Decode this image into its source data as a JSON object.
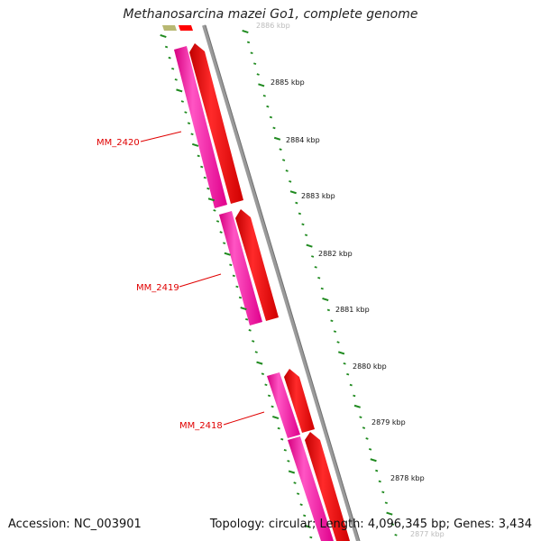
{
  "title": "Methanosarcina mazei Go1, complete genome",
  "footer": {
    "accession_label": "Accession:",
    "accession": "NC_003901",
    "topology_label": "Topology:",
    "topology": "circular",
    "length_label": "Length:",
    "length": "4,096,345 bp",
    "genes_label": "Genes:",
    "genes": "3,434"
  },
  "colors": {
    "backbone": "#8a8a8a",
    "tick": "#1f8a1f",
    "gene_pink": "#ff1aa6",
    "gene_red": "#ff0000",
    "gene_olive": "#b8b872",
    "label": "#e00000"
  },
  "ruler_labels": [
    "2886 kbp",
    "2885 kbp",
    "2884 kbp",
    "2883 kbp",
    "2882 kbp",
    "2881 kbp",
    "2880 kbp",
    "2879 kbp",
    "2878 kbp",
    "2877 kbp"
  ],
  "gene_labels": [
    "MM_2420",
    "MM_2419",
    "MM_2418"
  ]
}
